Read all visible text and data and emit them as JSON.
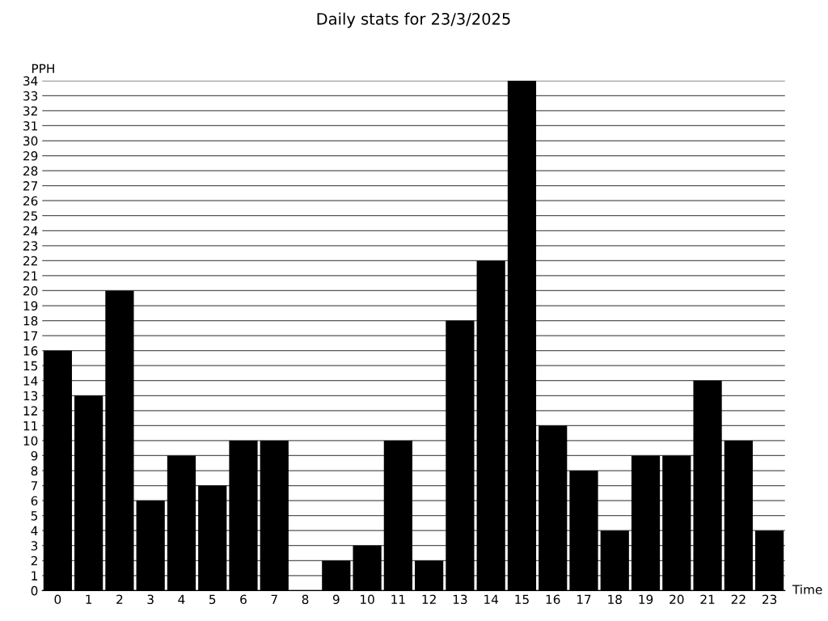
{
  "chart_data": {
    "type": "bar",
    "title": "Daily stats for 23/3/2025",
    "xlabel": "Time",
    "ylabel": "PPH",
    "categories": [
      "0",
      "1",
      "2",
      "3",
      "4",
      "5",
      "6",
      "7",
      "8",
      "9",
      "10",
      "11",
      "12",
      "13",
      "14",
      "15",
      "16",
      "17",
      "18",
      "19",
      "20",
      "21",
      "22",
      "23"
    ],
    "values": [
      16,
      13,
      20,
      6,
      9,
      7,
      10,
      10,
      0,
      2,
      3,
      10,
      2,
      18,
      22,
      34,
      11,
      8,
      4,
      9,
      9,
      14,
      10,
      4
    ],
    "color": "#000000",
    "ylim": [
      0,
      34
    ],
    "yticks": [
      0,
      1,
      2,
      3,
      4,
      5,
      6,
      7,
      8,
      9,
      10,
      11,
      12,
      13,
      14,
      15,
      16,
      17,
      18,
      19,
      20,
      21,
      22,
      23,
      24,
      25,
      26,
      27,
      28,
      29,
      30,
      31,
      32,
      33,
      34
    ],
    "grid": "y",
    "legend": false
  }
}
